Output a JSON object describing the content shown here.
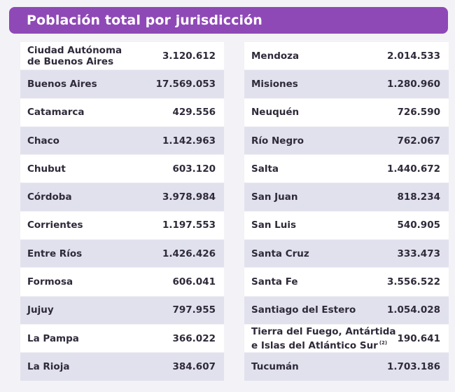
{
  "title": "Población total por jurisdicción",
  "left_rows": [
    {
      "name_line1": "Ciudad Autónoma",
      "name_line2": "de Buenos Aires",
      "value": "3.120.612"
    },
    {
      "name_line1": "Buenos Aires",
      "name_line2": "",
      "value": "17.569.053"
    },
    {
      "name_line1": "Catamarca",
      "name_line2": "",
      "value": "429.556"
    },
    {
      "name_line1": "Chaco",
      "name_line2": "",
      "value": "1.142.963"
    },
    {
      "name_line1": "Chubut",
      "name_line2": "",
      "value": "603.120"
    },
    {
      "name_line1": "Córdoba",
      "name_line2": "",
      "value": "3.978.984"
    },
    {
      "name_line1": "Corrientes",
      "name_line2": "",
      "value": "1.197.553"
    },
    {
      "name_line1": "Entre Ríos",
      "name_line2": "",
      "value": "1.426.426"
    },
    {
      "name_line1": "Formosa",
      "name_line2": "",
      "value": "606.041"
    },
    {
      "name_line1": "Jujuy",
      "name_line2": "",
      "value": "797.955"
    },
    {
      "name_line1": "La Pampa",
      "name_line2": "",
      "value": "366.022"
    },
    {
      "name_line1": "La Rioja",
      "name_line2": "",
      "value": "384.607"
    }
  ],
  "right_rows": [
    {
      "name_line1": "Mendoza",
      "name_line2": "",
      "value": "2.014.533"
    },
    {
      "name_line1": "Misiones",
      "name_line2": "",
      "value": "1.280.960"
    },
    {
      "name_line1": "Neuquén",
      "name_line2": "",
      "value": "726.590"
    },
    {
      "name_line1": "Río Negro",
      "name_line2": "",
      "value": "762.067"
    },
    {
      "name_line1": "Salta",
      "name_line2": "",
      "value": "1.440.672"
    },
    {
      "name_line1": "San Juan",
      "name_line2": "",
      "value": "818.234"
    },
    {
      "name_line1": "San Luis",
      "name_line2": "",
      "value": "540.905"
    },
    {
      "name_line1": "Santa Cruz",
      "name_line2": "",
      "value": "333.473"
    },
    {
      "name_line1": "Santa Fe",
      "name_line2": "",
      "value": "3.556.522"
    },
    {
      "name_line1": "Santiago del Estero",
      "name_line2": "",
      "value": "1.054.028"
    },
    {
      "name_line1": "Tierra del Fuego, Antártida",
      "name_line2": "e Islas del Atlántico Sur",
      "footnote": "(2)",
      "value": "190.641"
    },
    {
      "name_line1": "Tucumán",
      "name_line2": "",
      "value": "1.703.186"
    }
  ],
  "colors": {
    "title_bg": "#8e49b7",
    "row_light": "#ffffff",
    "row_dark": "#e1e1ee"
  }
}
